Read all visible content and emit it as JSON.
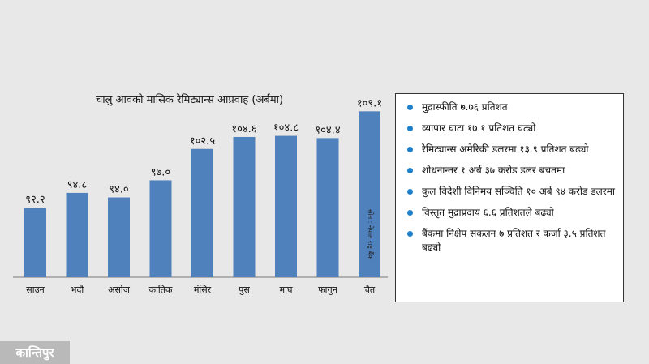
{
  "chart_data": {
    "type": "bar",
    "title": "चालु आवको मासिक रेमिट्यान्स आप्रवाह (अर्बमा)",
    "categories": [
      "साउन",
      "भदौ",
      "असोज",
      "कातिक",
      "मंसिर",
      "पुस",
      "माघ",
      "फागुन",
      "चैत"
    ],
    "values": [
      92.2,
      94.8,
      94.0,
      97.0,
      102.5,
      104.6,
      104.8,
      104.4,
      109.1
    ],
    "value_labels": [
      "९२.२",
      "९४.८",
      "९४.०",
      "९७.०",
      "१०२.५",
      "१०४.६",
      "१०४.८",
      "१०४.४",
      "१०९.१"
    ],
    "bar_color": "#4f81bd",
    "ylim": [
      80,
      110
    ],
    "grid": false,
    "source": "स्रोत : नेपाल राष्ट्र बैंक"
  },
  "info_box": {
    "bullet_color": "#1f7fc9",
    "items": [
      "मुद्रास्फीति ७.७६ प्रतिशत",
      "व्यापार घाटा १७.१ प्रतिशत घट्यो",
      "रेमिट्यान्स अमेरिकी डलरमा १३.९ प्रतिशत बढ्यो",
      "शोधनान्तर १ अर्ब ३७ करोड डलर बचतमा",
      "कुल विदेशी विनिमय सञ्चिति १० अर्ब ९४ करोड डलरमा",
      "विस्तृत मुद्राप्रदाय ६.६ प्रतिशतले बढ्यो",
      "बैंकमा निक्षेप संकलन ७ प्रतिशत र कर्जा ३.५ प्रतिशत बढ्यो"
    ]
  },
  "logo": {
    "text": "कान्तिपुर"
  }
}
